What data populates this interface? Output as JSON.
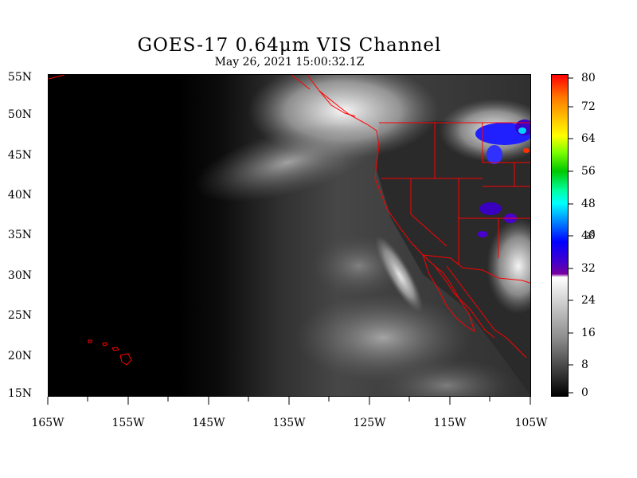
{
  "title": "GOES-17  0.64μm VIS Channel",
  "subtitle": "May 26,  2021 15:00:32.1Z",
  "map": {
    "lat_labels": [
      "55N",
      "50N",
      "45N",
      "40N",
      "35N",
      "30N",
      "25N",
      "20N",
      "15N"
    ],
    "lon_labels": [
      "165W",
      "155W",
      "145W",
      "135W",
      "125W",
      "115W",
      "105W"
    ],
    "lat_range": [
      15,
      55
    ],
    "lon_range": [
      -165,
      -105
    ],
    "border_color": "#ff0000"
  },
  "colorbar": {
    "labels": [
      "80",
      "72",
      "64",
      "56",
      "48",
      "40",
      "32",
      "24",
      "16",
      "8",
      "0"
    ],
    "range": [
      0,
      80
    ],
    "unit": "%",
    "color_stops": [
      "#ff0000",
      "#ff8c00",
      "#ffff00",
      "#00c800",
      "#00ffff",
      "#0064ff",
      "#0000ff",
      "#6400b4",
      "#ffffff",
      "#000000"
    ]
  }
}
